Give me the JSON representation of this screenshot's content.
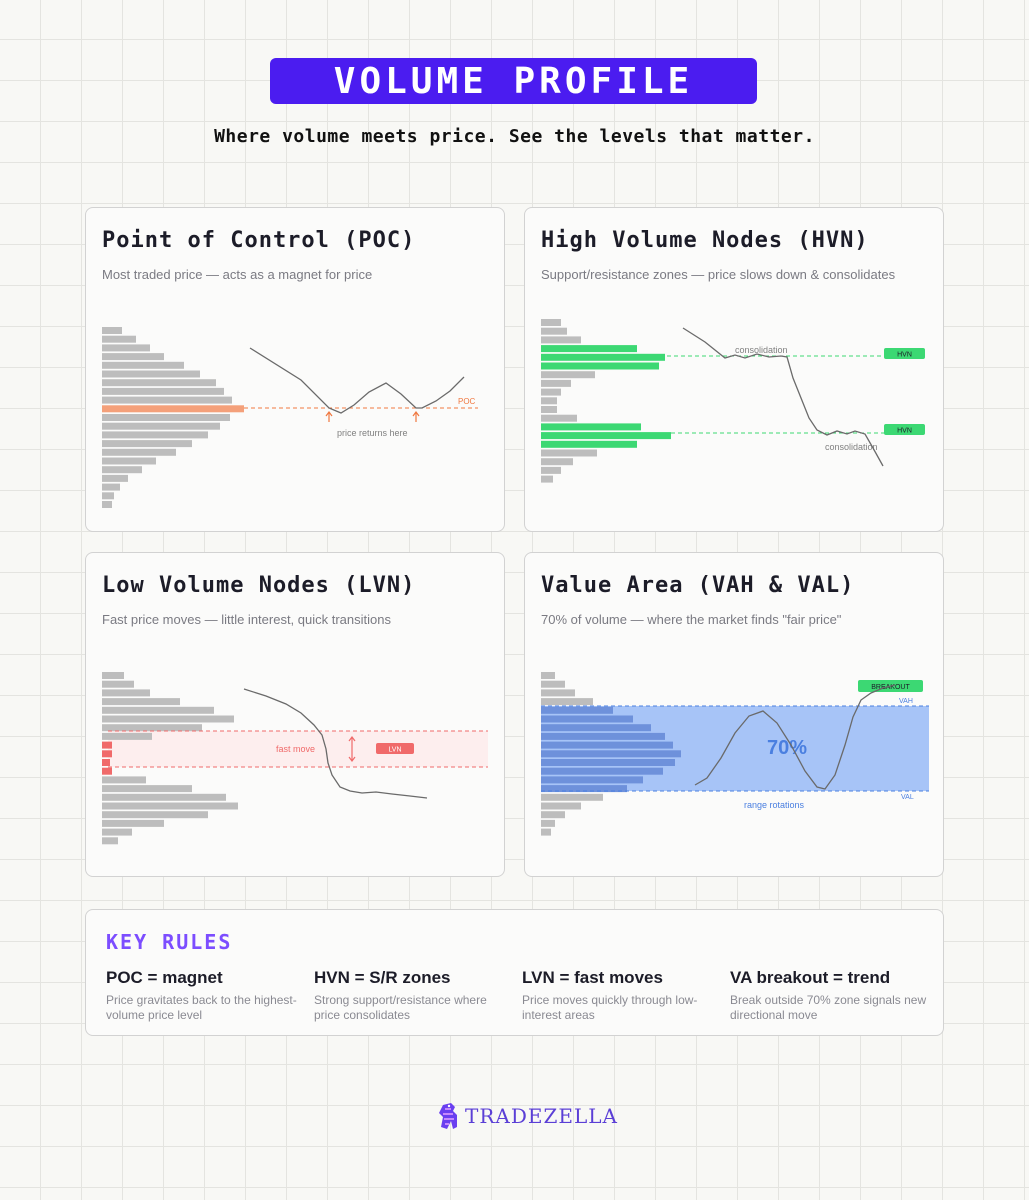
{
  "title": "VOLUME PROFILE",
  "subtitle": "Where volume meets price. See the levels that matter.",
  "colors": {
    "accent": "#4b1cf0",
    "poc": "#f4a07a",
    "poc_line": "#f07840",
    "hvn": "#3cd873",
    "lvn": "#f06a6a",
    "value_area": "#a7c4f7",
    "value_area_bars": "#6e91db",
    "bar_gray": "#bdbdbd",
    "rules_title": "#7c4dff"
  },
  "cards": {
    "poc": {
      "title": "Point of Control (POC)",
      "description": "Most traded price — acts as a magnet for price",
      "label_poc": "POC",
      "annotation": "price returns here"
    },
    "hvn": {
      "title": "High Volume Nodes (HVN)",
      "description": "Support/resistance zones — price slows down & consolidates",
      "badge": "HVN",
      "annotation": "consolidation"
    },
    "lvn": {
      "title": "Low Volume Nodes (LVN)",
      "description": "Fast price moves — little interest, quick transitions",
      "badge": "LVN",
      "annotation": "fast move"
    },
    "va": {
      "title": "Value Area (VAH & VAL)",
      "description": "70% of volume — where the market finds \"fair price\"",
      "breakout": "BREAKOUT",
      "vah": "VAH",
      "val": "VAL",
      "pct": "70%",
      "annotation": "range rotations"
    }
  },
  "rules": {
    "title": "KEY RULES",
    "items": [
      {
        "head": "POC = magnet",
        "body": "Price gravitates back to the highest-volume price level"
      },
      {
        "head": "HVN = S/R zones",
        "body": "Strong support/resistance where price consolidates"
      },
      {
        "head": "LVN = fast moves",
        "body": "Price moves quickly through low-interest areas"
      },
      {
        "head": "VA breakout = trend",
        "body": "Break outside 70% zone signals new directional move"
      }
    ]
  },
  "footer": {
    "brand": "TRADEZELLA",
    "icon": "zebra-logo-icon"
  }
}
